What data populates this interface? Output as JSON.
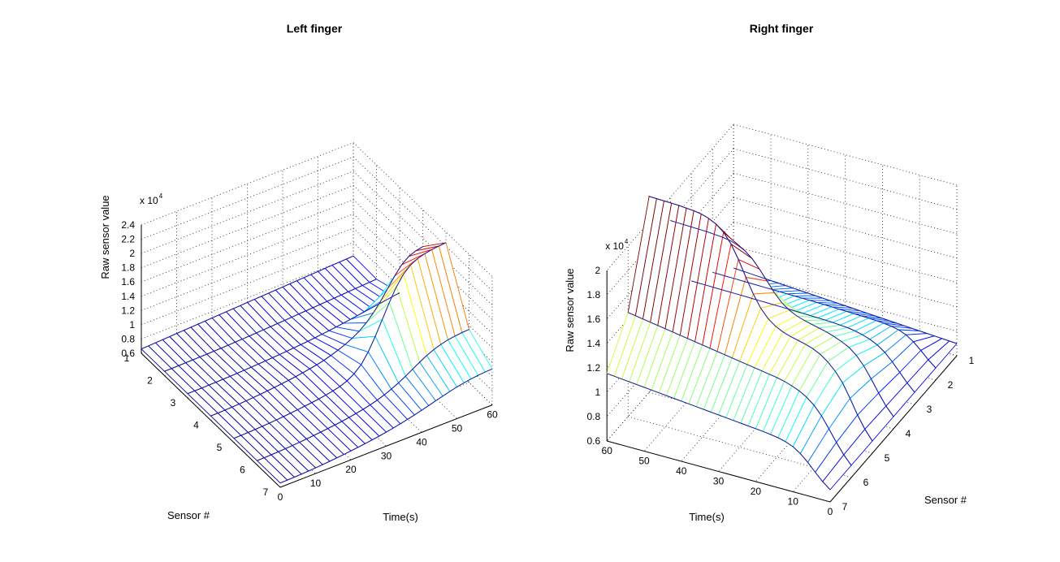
{
  "chart_data": [
    {
      "type": "mesh3d",
      "title": "Left finger",
      "xlabel": "Time(s)",
      "ylabel": "Sensor #",
      "zlabel": "Raw sensor value",
      "exponent_label": "x 10",
      "exponent_power": "4",
      "x_ticks": [
        "0",
        "10",
        "20",
        "30",
        "40",
        "50",
        "60"
      ],
      "y_ticks": [
        "1",
        "2",
        "3",
        "4",
        "5",
        "6",
        "7"
      ],
      "z_ticks": [
        "0.6",
        "0.8",
        "1",
        "1.2",
        "1.4",
        "1.6",
        "1.8",
        "2",
        "2.2",
        "2.4"
      ],
      "xlim": [
        0,
        60
      ],
      "ylim": [
        1,
        7
      ],
      "zlim": [
        6000,
        24000
      ],
      "grid": true,
      "colormap": "jet",
      "time_samples": [
        0,
        2,
        4,
        6,
        8,
        10,
        12,
        14,
        16,
        18,
        20,
        22,
        24,
        26,
        28,
        30,
        32,
        34,
        36,
        38,
        40,
        42,
        44,
        46,
        48,
        50,
        52,
        54,
        56,
        58,
        60
      ],
      "sensors": [
        1,
        2,
        3,
        4,
        5,
        6,
        7
      ],
      "series": [
        {
          "sensor": 1,
          "values": [
            6600,
            6650,
            6700,
            6750,
            6800,
            6850,
            6900,
            6950,
            7000,
            7050,
            7100,
            7150,
            7200,
            7250,
            7300,
            7350,
            7400,
            7450,
            7500,
            7550,
            7600,
            7650,
            7700,
            7750,
            7800,
            7850,
            7900,
            7950,
            8000,
            8050,
            8100
          ]
        },
        {
          "sensor": 2,
          "values": [
            6600,
            6610,
            6620,
            6640,
            6660,
            6680,
            6700,
            6730,
            6760,
            6800,
            6840,
            6880,
            6930,
            6980,
            7030,
            7080,
            7140,
            7200,
            7260,
            7320,
            7380,
            7440,
            7500,
            7560,
            7620,
            7680,
            7740,
            7800,
            7860,
            7920,
            7980
          ]
        },
        {
          "sensor": 3,
          "values": [
            6600,
            6610,
            6620,
            6640,
            6660,
            6690,
            6720,
            6760,
            6800,
            6850,
            6900,
            6960,
            7020,
            7080,
            7150,
            7230,
            7310,
            7400,
            7500,
            7610,
            7730,
            7860,
            8000,
            8150,
            8300,
            8450,
            8600,
            8750,
            8900,
            9050,
            9200
          ]
        },
        {
          "sensor": 4,
          "values": [
            6600,
            6620,
            6650,
            6690,
            6740,
            6800,
            6870,
            6950,
            7040,
            7140,
            7250,
            7370,
            7500,
            7650,
            7820,
            8000,
            8250,
            8550,
            8900,
            9300,
            9800,
            10400,
            11200,
            12200,
            13400,
            14800,
            16200,
            17400,
            18200,
            18600,
            18800
          ]
        },
        {
          "sensor": 5,
          "values": [
            6600,
            6620,
            6650,
            6690,
            6740,
            6800,
            6870,
            6950,
            7040,
            7140,
            7250,
            7370,
            7500,
            7660,
            7850,
            8100,
            8500,
            9100,
            10000,
            11400,
            13200,
            15200,
            17200,
            19000,
            20400,
            21300,
            21800,
            22100,
            22300,
            22400,
            22500
          ]
        },
        {
          "sensor": 6,
          "values": [
            6600,
            6620,
            6650,
            6690,
            6740,
            6800,
            6870,
            6950,
            7040,
            7140,
            7250,
            7370,
            7500,
            7650,
            7820,
            8020,
            8260,
            8550,
            8900,
            9320,
            9800,
            10350,
            10950,
            11550,
            12100,
            12550,
            12900,
            13150,
            13300,
            13400,
            13450
          ]
        },
        {
          "sensor": 7,
          "values": [
            6600,
            6620,
            6650,
            6690,
            6740,
            6800,
            6870,
            6950,
            7040,
            7140,
            7250,
            7370,
            7500,
            7640,
            7790,
            7960,
            8150,
            8360,
            8590,
            8840,
            9100,
            9380,
            9660,
            9940,
            10200,
            10440,
            10640,
            10800,
            10920,
            11000,
            11050
          ]
        }
      ]
    },
    {
      "type": "mesh3d",
      "title": "Right finger",
      "xlabel": "Time(s)",
      "ylabel": "Sensor #",
      "zlabel": "Raw sensor value",
      "exponent_label": "x 10",
      "exponent_power": "4",
      "x_ticks": [
        "0",
        "10",
        "20",
        "30",
        "40",
        "50",
        "60"
      ],
      "y_ticks": [
        "1",
        "2",
        "3",
        "4",
        "5",
        "6",
        "7"
      ],
      "z_ticks": [
        "0.6",
        "0.8",
        "1",
        "1.2",
        "1.4",
        "1.6",
        "1.8",
        "2"
      ],
      "xlim": [
        0,
        60
      ],
      "ylim": [
        1,
        7
      ],
      "zlim": [
        6000,
        20000
      ],
      "grid": true,
      "colormap": "jet",
      "time_samples": [
        0,
        2,
        4,
        6,
        8,
        10,
        12,
        14,
        16,
        18,
        20,
        22,
        24,
        26,
        28,
        30,
        32,
        34,
        36,
        38,
        40,
        42,
        44,
        46,
        48,
        50,
        52,
        54,
        56,
        58,
        60
      ],
      "sensors": [
        1,
        2,
        3,
        4,
        5,
        6,
        7
      ],
      "series": [
        {
          "sensor": 1,
          "values": [
            7000,
            7040,
            7080,
            7120,
            7160,
            7200,
            7240,
            7280,
            7320,
            7360,
            7400,
            7440,
            7480,
            7520,
            7560,
            7600,
            7640,
            7680,
            7720,
            7760,
            7800,
            7840,
            7880,
            7920,
            7960,
            8000,
            8040,
            8080,
            8120,
            8160,
            8200
          ]
        },
        {
          "sensor": 2,
          "values": [
            7000,
            7500,
            8100,
            8650,
            9050,
            9300,
            9430,
            9500,
            9550,
            9580,
            9600,
            9620,
            9640,
            9660,
            9680,
            9700,
            9710,
            9720,
            9730,
            9740,
            9750,
            9760,
            9770,
            9780,
            9790,
            9800,
            9810,
            9820,
            9830,
            9840,
            9850
          ]
        },
        {
          "sensor": 3,
          "values": [
            7000,
            7600,
            8300,
            9000,
            9600,
            10050,
            10350,
            10550,
            10700,
            10800,
            10850,
            10900,
            10920,
            10940,
            10960,
            10980,
            11000,
            11010,
            11020,
            11030,
            11040,
            11050,
            11060,
            11070,
            11080,
            11090,
            11100,
            11110,
            11120,
            11130,
            11140
          ]
        },
        {
          "sensor": 4,
          "values": [
            7000,
            7700,
            8600,
            9600,
            10500,
            11200,
            11700,
            12000,
            12250,
            12450,
            12600,
            12750,
            12900,
            13100,
            13400,
            13850,
            14500,
            15300,
            16100,
            16800,
            17300,
            17600,
            17800,
            17900,
            17950,
            18000,
            18020,
            18040,
            18060,
            18080,
            18100
          ]
        },
        {
          "sensor": 5,
          "values": [
            7000,
            7800,
            8800,
            10000,
            11100,
            11900,
            12500,
            12950,
            13250,
            13450,
            13600,
            13750,
            13950,
            14250,
            14700,
            15400,
            16400,
            17600,
            18900,
            20000,
            20800,
            21300,
            21600,
            21800,
            21900,
            21950,
            22000,
            22020,
            22040,
            22060,
            22080
          ]
        },
        {
          "sensor": 6,
          "values": [
            7000,
            7700,
            8550,
            9500,
            10400,
            11100,
            11600,
            11950,
            12200,
            12400,
            12550,
            12650,
            12750,
            12850,
            12950,
            13050,
            13150,
            13250,
            13350,
            13450,
            13550,
            13650,
            13750,
            13850,
            13950,
            14050,
            14150,
            14250,
            14350,
            14450,
            14550
          ]
        },
        {
          "sensor": 7,
          "values": [
            7000,
            7500,
            8100,
            8750,
            9300,
            9700,
            9950,
            10100,
            10200,
            10280,
            10340,
            10400,
            10460,
            10520,
            10580,
            10640,
            10700,
            10760,
            10820,
            10880,
            10940,
            11000,
            11060,
            11120,
            11180,
            11240,
            11300,
            11360,
            11420,
            11480,
            11540
          ]
        }
      ]
    }
  ]
}
